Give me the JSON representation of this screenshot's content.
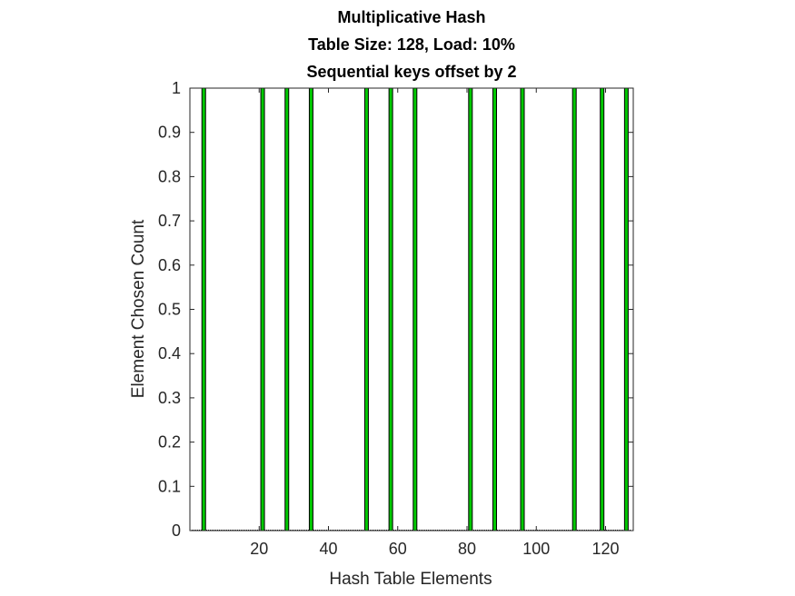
{
  "chart_data": {
    "type": "bar",
    "title_lines": [
      "Multiplicative Hash",
      "Table Size: 128, Load: 10%",
      "Sequential keys offset by 2"
    ],
    "xlabel": "Hash Table Elements",
    "ylabel": "Element Chosen Count",
    "xlim": [
      0,
      128
    ],
    "ylim": [
      0,
      1
    ],
    "xticks": [
      20,
      40,
      60,
      80,
      100,
      120
    ],
    "yticks": [
      0,
      0.1,
      0.2,
      0.3,
      0.4,
      0.5,
      0.6,
      0.7,
      0.8,
      0.9,
      1
    ],
    "grid": false,
    "x": [
      4,
      21,
      28,
      35,
      51,
      58,
      65,
      81,
      88,
      96,
      111,
      119,
      126
    ],
    "values": [
      1,
      1,
      1,
      1,
      1,
      1,
      1,
      1,
      1,
      1,
      1,
      1,
      1
    ],
    "bar_face_color": "#00c800",
    "bar_edge_color": "#000000"
  }
}
